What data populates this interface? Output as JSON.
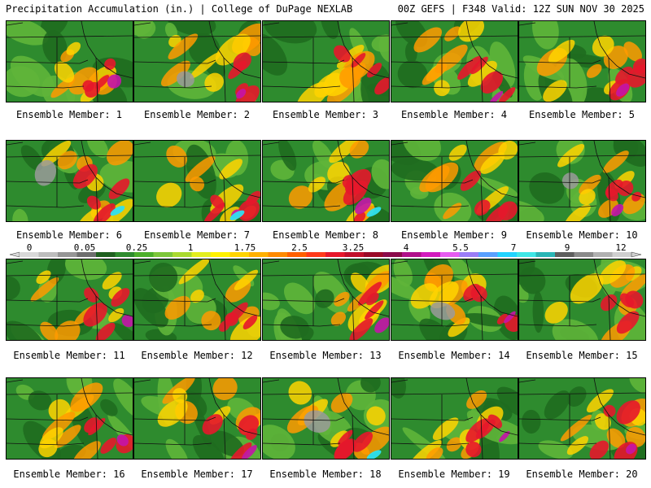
{
  "header": {
    "title_left": "Precipitation Accumulation (in.) | College of DuPage NEXLAB",
    "title_right": "00Z GEFS | F348 Valid: 12Z SUN NOV 30 2025"
  },
  "colorbar": {
    "labels": [
      "0",
      "0.05",
      "0.25",
      "1",
      "1.75",
      "2.5",
      "3.25",
      "4",
      "5.5",
      "7",
      "9",
      "12"
    ],
    "colors": [
      "#d9d9d9",
      "#bdbdbd",
      "#969696",
      "#6e6e6e",
      "#1f5f1f",
      "#2e8b2e",
      "#4caf2a",
      "#7cc63a",
      "#a9d930",
      "#e3ee20",
      "#fff200",
      "#ffd400",
      "#ffb000",
      "#ff8a00",
      "#ff6000",
      "#ff3a1a",
      "#e6172b",
      "#c00f2a",
      "#9a0a28",
      "#8a0a4a",
      "#b0108a",
      "#d21cbd",
      "#e65cf0",
      "#9b7df7",
      "#5aa0ff",
      "#22d3ff",
      "#3ee6e6",
      "#2ab5b5",
      "#5e5e5e",
      "#8a8a8a",
      "#b0b0b0",
      "#cfcfcf"
    ]
  },
  "panels": [
    {
      "label": "Ensemble Member: 1"
    },
    {
      "label": "Ensemble Member: 2"
    },
    {
      "label": "Ensemble Member: 3"
    },
    {
      "label": "Ensemble Member: 4"
    },
    {
      "label": "Ensemble Member: 5"
    },
    {
      "label": "Ensemble Member: 6"
    },
    {
      "label": "Ensemble Member: 7"
    },
    {
      "label": "Ensemble Member: 8"
    },
    {
      "label": "Ensemble Member: 9"
    },
    {
      "label": "Ensemble Member: 10"
    },
    {
      "label": "Ensemble Member: 11"
    },
    {
      "label": "Ensemble Member: 12"
    },
    {
      "label": "Ensemble Member: 13"
    },
    {
      "label": "Ensemble Member: 14"
    },
    {
      "label": "Ensemble Member: 15"
    },
    {
      "label": "Ensemble Member: 16"
    },
    {
      "label": "Ensemble Member: 17"
    },
    {
      "label": "Ensemble Member: 18"
    },
    {
      "label": "Ensemble Member: 19"
    },
    {
      "label": "Ensemble Member: 20"
    }
  ]
}
